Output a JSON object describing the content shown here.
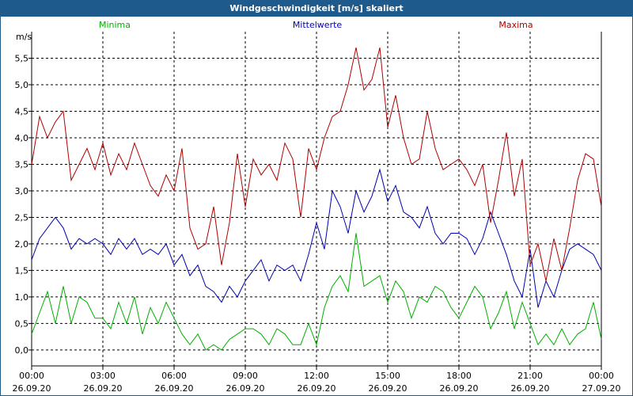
{
  "window": {
    "title": "Windgeschwindigkeit [m/s] skaliert"
  },
  "chart_data": {
    "type": "line",
    "title": "Windgeschwindigkeit [m/s] skaliert",
    "ylabel": "m/s",
    "xlabel": "",
    "ylim": [
      -0.3,
      6.0
    ],
    "xlim": [
      0,
      24
    ],
    "grid": true,
    "legend_placement": "top",
    "y_ticks": [
      "0,0",
      "0,5",
      "1,0",
      "1,5",
      "2,0",
      "2,5",
      "3,0",
      "3,5",
      "4,0",
      "4,5",
      "5,0",
      "5,5"
    ],
    "y_tick_values": [
      0,
      0.5,
      1,
      1.5,
      2,
      2.5,
      3,
      3.5,
      4,
      4.5,
      5,
      5.5
    ],
    "x_ticks": [
      {
        "time": "00:00",
        "date": "26.09.20",
        "hour": 0
      },
      {
        "time": "03:00",
        "date": "26.09.20",
        "hour": 3
      },
      {
        "time": "06:00",
        "date": "26.09.20",
        "hour": 6
      },
      {
        "time": "09:00",
        "date": "26.09.20",
        "hour": 9
      },
      {
        "time": "12:00",
        "date": "26.09.20",
        "hour": 12
      },
      {
        "time": "15:00",
        "date": "26.09.20",
        "hour": 15
      },
      {
        "time": "18:00",
        "date": "26.09.20",
        "hour": 18
      },
      {
        "time": "21:00",
        "date": "26.09.20",
        "hour": 21
      },
      {
        "time": "00:00",
        "date": "27.09.20",
        "hour": 24
      }
    ],
    "series": [
      {
        "name": "Minima",
        "color": "#00b000",
        "x": [
          0,
          0.333,
          0.667,
          1,
          1.333,
          1.667,
          2,
          2.333,
          2.667,
          3,
          3.333,
          3.667,
          4,
          4.333,
          4.667,
          5,
          5.333,
          5.667,
          6,
          6.333,
          6.667,
          7,
          7.333,
          7.667,
          8,
          8.333,
          8.667,
          9,
          9.333,
          9.667,
          10,
          10.333,
          10.667,
          11,
          11.333,
          11.667,
          12,
          12.333,
          12.667,
          13,
          13.333,
          13.667,
          14,
          14.333,
          14.667,
          15,
          15.333,
          15.667,
          16,
          16.333,
          16.667,
          17,
          17.333,
          17.667,
          18,
          18.333,
          18.667,
          19,
          19.333,
          19.667,
          20,
          20.333,
          20.667,
          21,
          21.333,
          21.667,
          22,
          22.333,
          22.667,
          23,
          23.333,
          23.667,
          24
        ],
        "values": [
          0.3,
          0.7,
          1.1,
          0.5,
          1.2,
          0.5,
          1.0,
          0.9,
          0.6,
          0.6,
          0.4,
          0.9,
          0.5,
          1.0,
          0.3,
          0.8,
          0.5,
          0.9,
          0.6,
          0.3,
          0.1,
          0.3,
          0.0,
          0.1,
          0.0,
          0.2,
          0.3,
          0.4,
          0.4,
          0.3,
          0.1,
          0.4,
          0.3,
          0.1,
          0.1,
          0.5,
          0.1,
          0.8,
          1.2,
          1.4,
          1.1,
          2.2,
          1.2,
          1.3,
          1.4,
          0.9,
          1.3,
          1.1,
          0.6,
          1.0,
          0.9,
          1.2,
          1.1,
          0.8,
          0.6,
          0.9,
          1.2,
          1.0,
          0.4,
          0.7,
          1.1,
          0.4,
          0.9,
          0.5,
          0.1,
          0.3,
          0.1,
          0.4,
          0.1,
          0.3,
          0.4,
          0.9,
          0.2
        ]
      },
      {
        "name": "Mittelwerte",
        "color": "#0000b0",
        "x": [
          0,
          0.333,
          0.667,
          1,
          1.333,
          1.667,
          2,
          2.333,
          2.667,
          3,
          3.333,
          3.667,
          4,
          4.333,
          4.667,
          5,
          5.333,
          5.667,
          6,
          6.333,
          6.667,
          7,
          7.333,
          7.667,
          8,
          8.333,
          8.667,
          9,
          9.333,
          9.667,
          10,
          10.333,
          10.667,
          11,
          11.333,
          11.667,
          12,
          12.333,
          12.667,
          13,
          13.333,
          13.667,
          14,
          14.333,
          14.667,
          15,
          15.333,
          15.667,
          16,
          16.333,
          16.667,
          17,
          17.333,
          17.667,
          18,
          18.333,
          18.667,
          19,
          19.333,
          19.667,
          20,
          20.333,
          20.667,
          21,
          21.333,
          21.667,
          22,
          22.333,
          22.667,
          23,
          23.333,
          23.667,
          24
        ],
        "values": [
          1.7,
          2.1,
          2.3,
          2.5,
          2.3,
          1.9,
          2.1,
          2.0,
          2.1,
          2.0,
          1.8,
          2.1,
          1.9,
          2.1,
          1.8,
          1.9,
          1.8,
          2.0,
          1.6,
          1.8,
          1.4,
          1.6,
          1.2,
          1.1,
          0.9,
          1.2,
          1.0,
          1.3,
          1.5,
          1.7,
          1.3,
          1.6,
          1.5,
          1.6,
          1.3,
          1.8,
          2.4,
          1.9,
          3.0,
          2.7,
          2.2,
          3.0,
          2.6,
          2.9,
          3.4,
          2.8,
          3.1,
          2.6,
          2.5,
          2.3,
          2.7,
          2.2,
          2.0,
          2.2,
          2.2,
          2.1,
          1.8,
          2.1,
          2.6,
          2.2,
          1.8,
          1.3,
          1.0,
          1.9,
          0.8,
          1.3,
          1.0,
          1.5,
          1.9,
          2.0,
          1.9,
          1.8,
          1.5
        ]
      },
      {
        "name": "Maxima",
        "color": "#b00000",
        "x": [
          0,
          0.333,
          0.667,
          1,
          1.333,
          1.667,
          2,
          2.333,
          2.667,
          3,
          3.333,
          3.667,
          4,
          4.333,
          4.667,
          5,
          5.333,
          5.667,
          6,
          6.333,
          6.667,
          7,
          7.333,
          7.667,
          8,
          8.333,
          8.667,
          9,
          9.333,
          9.667,
          10,
          10.333,
          10.667,
          11,
          11.333,
          11.667,
          12,
          12.333,
          12.667,
          13,
          13.333,
          13.667,
          14,
          14.333,
          14.667,
          15,
          15.333,
          15.667,
          16,
          16.333,
          16.667,
          17,
          17.333,
          17.667,
          18,
          18.333,
          18.667,
          19,
          19.333,
          19.667,
          20,
          20.333,
          20.667,
          21,
          21.333,
          21.667,
          22,
          22.333,
          22.667,
          23,
          23.333,
          23.667,
          24
        ],
        "values": [
          3.5,
          4.4,
          4.0,
          4.3,
          4.5,
          3.2,
          3.5,
          3.8,
          3.4,
          3.9,
          3.3,
          3.7,
          3.4,
          3.9,
          3.5,
          3.1,
          2.9,
          3.3,
          3.0,
          3.8,
          2.3,
          1.9,
          2.0,
          2.7,
          1.6,
          2.4,
          3.7,
          2.7,
          3.6,
          3.3,
          3.5,
          3.2,
          3.9,
          3.6,
          2.5,
          3.8,
          3.4,
          4.0,
          4.4,
          4.5,
          5.0,
          5.7,
          4.9,
          5.1,
          5.7,
          4.2,
          4.8,
          4.0,
          3.5,
          3.6,
          4.5,
          3.8,
          3.4,
          3.5,
          3.6,
          3.4,
          3.1,
          3.5,
          2.4,
          3.2,
          4.1,
          2.9,
          3.6,
          1.6,
          2.0,
          1.3,
          2.1,
          1.5,
          2.3,
          3.2,
          3.7,
          3.6,
          2.7
        ]
      }
    ]
  }
}
